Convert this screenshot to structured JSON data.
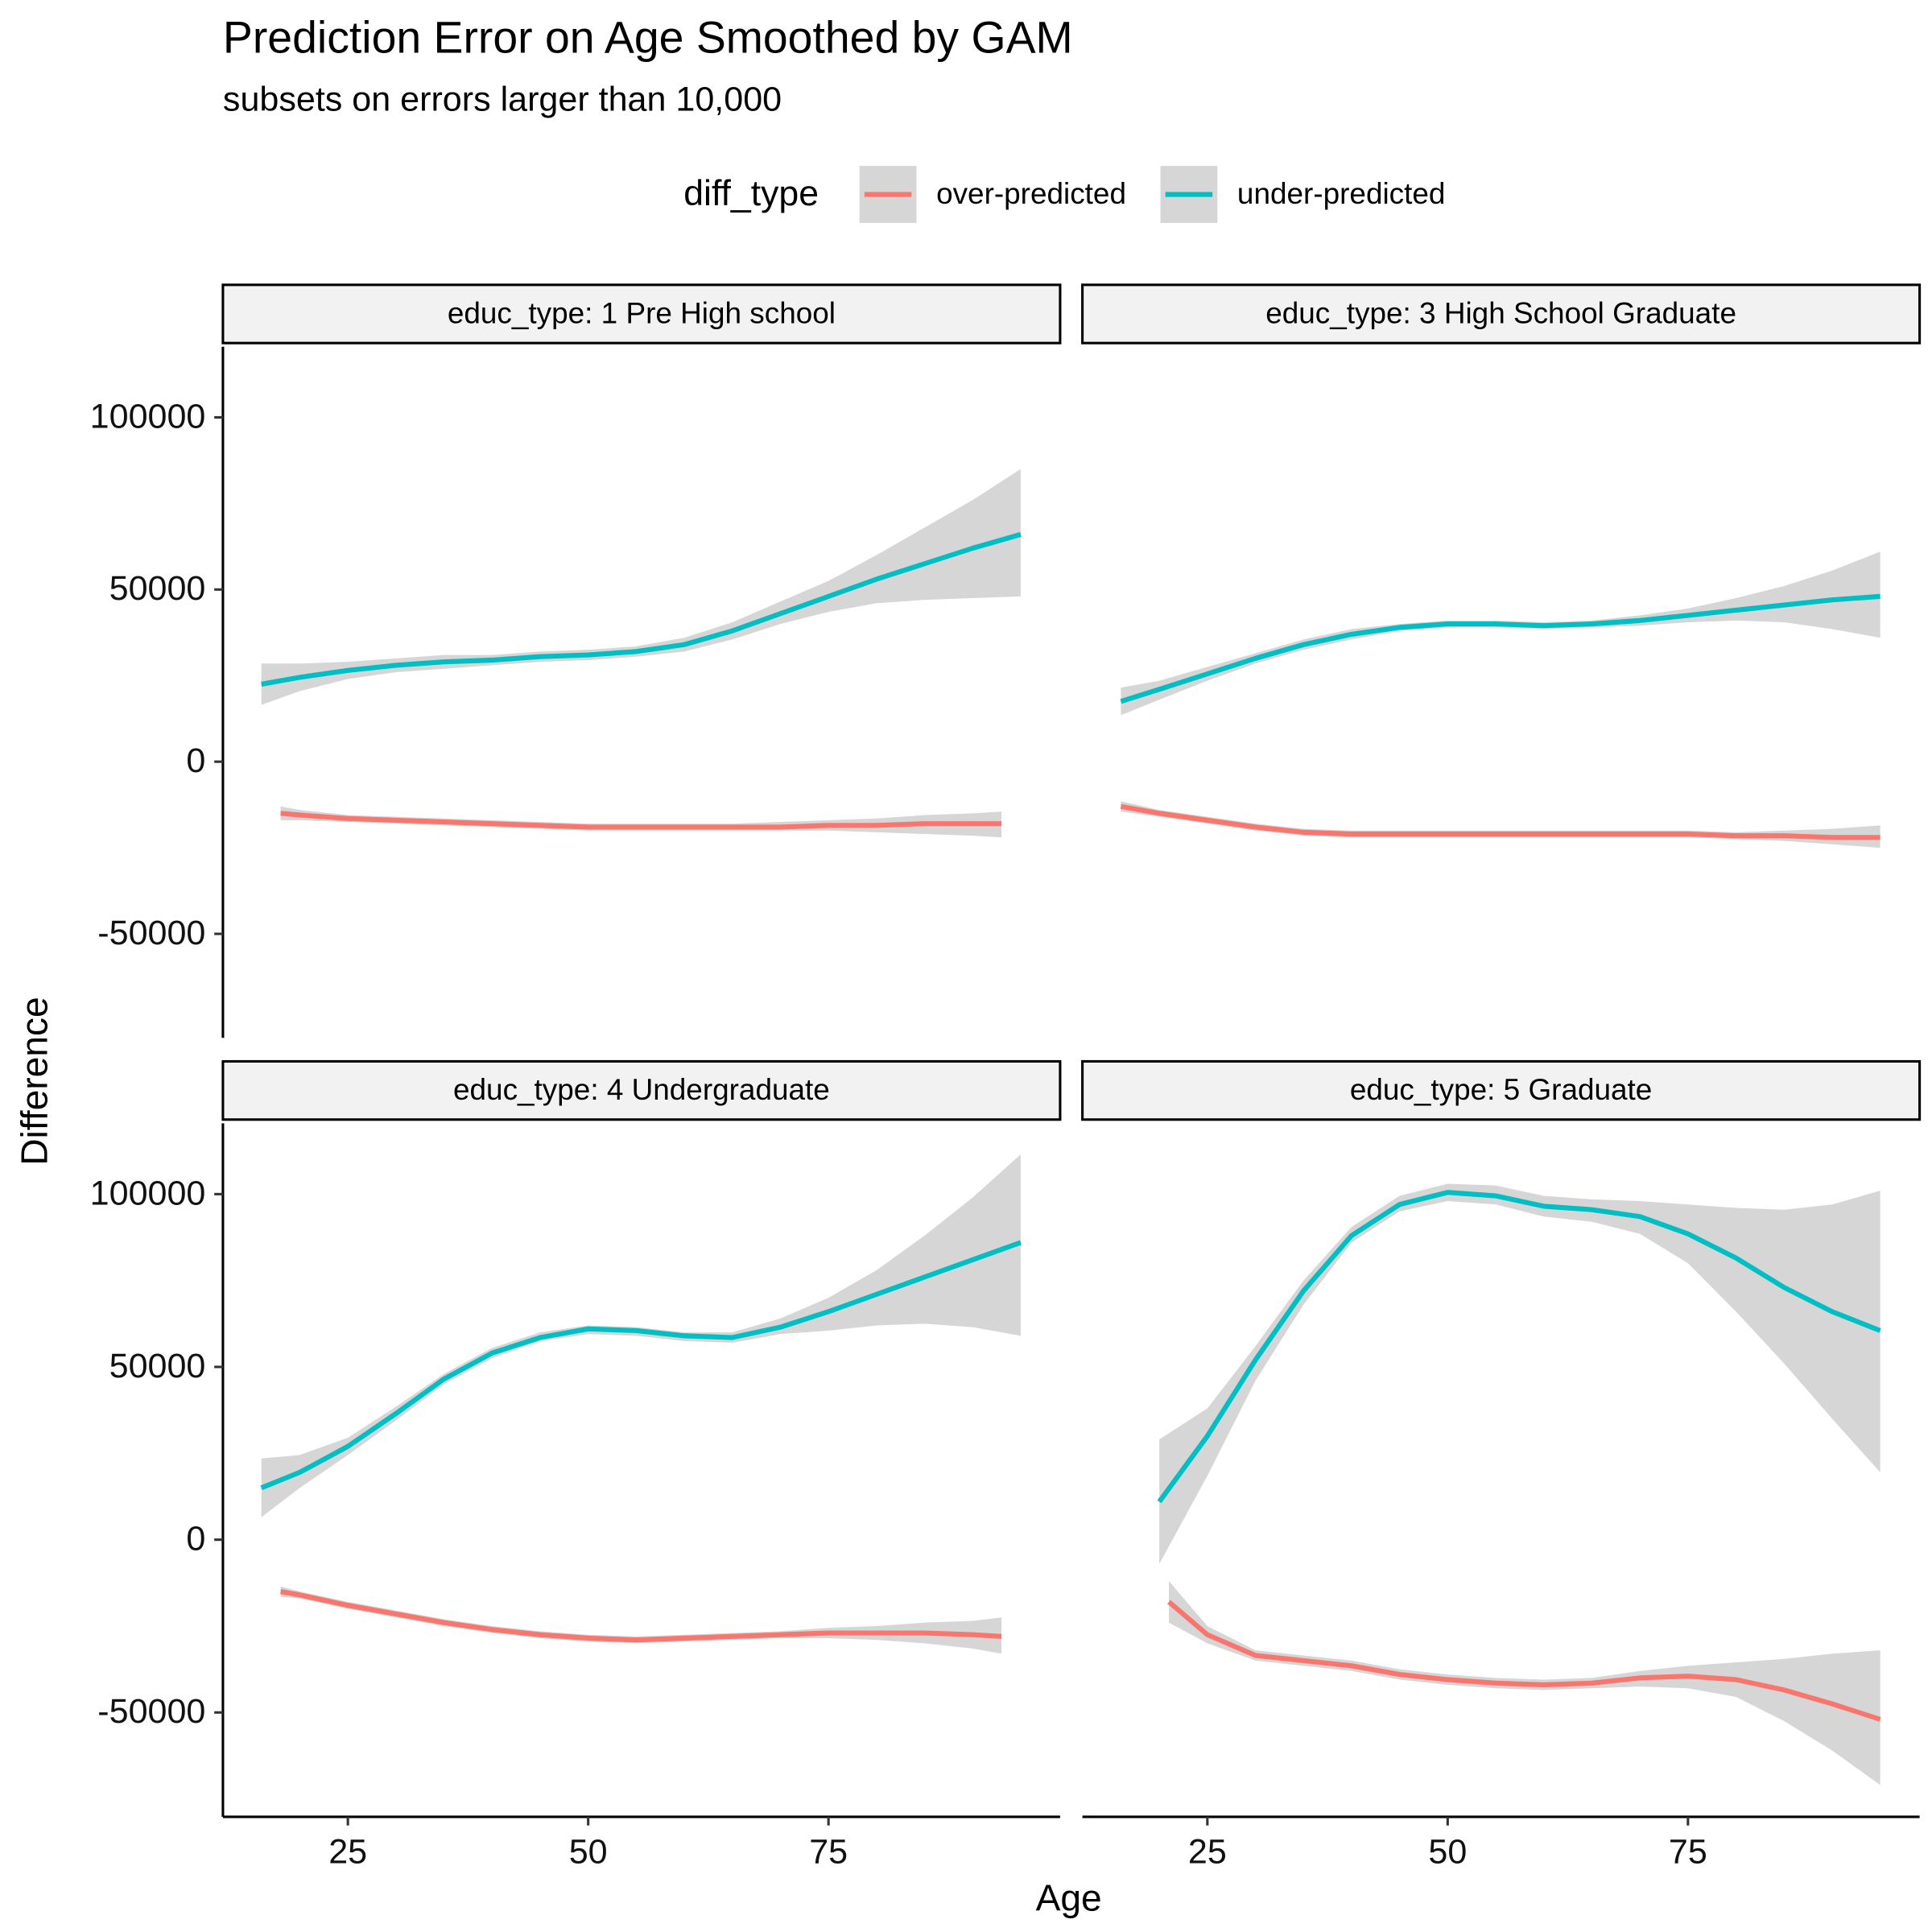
{
  "chart_data": {
    "type": "line",
    "title": "Prediction Error on Age Smoothed by GAM",
    "subtitle": "subsets on errors larger than 10,000",
    "x_label": "Age",
    "y_label": "Difference",
    "legend_title": "diff_type",
    "band_color": "#d6d6d6",
    "series": [
      {
        "name": "over-predicted",
        "color": "#F8766D"
      },
      {
        "name": "under-predicted",
        "color": "#00BFC4"
      }
    ],
    "xlim": [
      12,
      99.1
    ],
    "xticks": [
      25,
      50,
      75
    ],
    "ylim": [
      -80200,
      120500
    ],
    "yticks": [
      -50000,
      0,
      50000,
      100000
    ],
    "panels": [
      {
        "title": "educ_type: 1 Pre High school",
        "data": [
          {
            "x": [
              18,
              20,
              25,
              30,
              35,
              40,
              45,
              50,
              55,
              60,
              65,
              70,
              75,
              80,
              85,
              90,
              93
            ],
            "values": [
              -15000,
              -15500,
              -16500,
              -17000,
              -17500,
              -18000,
              -18500,
              -19000,
              -19000,
              -19000,
              -19000,
              -19000,
              -18500,
              -18500,
              -18000,
              -18000,
              -18000
            ],
            "lower": [
              -17000,
              -17000,
              -17500,
              -18000,
              -18500,
              -19000,
              -19500,
              -20000,
              -20000,
              -20000,
              -20000,
              -20000,
              -20000,
              -20500,
              -21000,
              -21500,
              -22000
            ],
            "upper": [
              -13000,
              -14000,
              -15500,
              -16000,
              -16500,
              -17000,
              -17500,
              -18000,
              -18000,
              -18000,
              -18000,
              -17500,
              -17000,
              -16500,
              -15500,
              -15000,
              -14500
            ]
          },
          {
            "x": [
              16,
              20,
              25,
              30,
              35,
              40,
              45,
              50,
              55,
              60,
              65,
              70,
              75,
              80,
              85,
              90,
              95
            ],
            "values": [
              22500,
              24500,
              26500,
              28000,
              29000,
              29500,
              30500,
              31000,
              32000,
              34000,
              38000,
              43000,
              48000,
              53000,
              57500,
              62000,
              66000
            ],
            "lower": [
              16500,
              20500,
              24000,
              26000,
              27000,
              28000,
              29000,
              29500,
              30500,
              32000,
              35500,
              40000,
              43500,
              46000,
              47000,
              47500,
              48000
            ],
            "upper": [
              28500,
              28500,
              29000,
              30000,
              31000,
              31000,
              32000,
              32500,
              33500,
              36000,
              40500,
              46500,
              52500,
              60000,
              68000,
              76000,
              85000
            ]
          }
        ]
      },
      {
        "title": "educ_type: 3 High School Graduate",
        "data": [
          {
            "x": [
              16,
              20,
              25,
              30,
              35,
              40,
              45,
              50,
              55,
              60,
              65,
              70,
              75,
              80,
              85,
              90,
              95
            ],
            "values": [
              -13000,
              -15000,
              -17000,
              -19000,
              -20500,
              -21000,
              -21000,
              -21000,
              -21000,
              -21000,
              -21000,
              -21000,
              -21000,
              -21500,
              -21500,
              -22000,
              -22000
            ],
            "lower": [
              -14500,
              -16000,
              -18000,
              -20000,
              -21500,
              -22000,
              -22000,
              -22000,
              -22000,
              -22000,
              -22000,
              -22000,
              -22000,
              -22500,
              -23000,
              -24000,
              -25000
            ],
            "upper": [
              -11500,
              -14000,
              -16000,
              -18000,
              -19500,
              -20000,
              -20000,
              -20000,
              -20000,
              -20000,
              -20000,
              -20000,
              -20000,
              -20500,
              -20000,
              -19500,
              -18500
            ]
          },
          {
            "x": [
              16,
              20,
              25,
              30,
              35,
              40,
              45,
              50,
              55,
              60,
              65,
              70,
              75,
              80,
              85,
              90,
              95
            ],
            "values": [
              17500,
              21000,
              25500,
              30000,
              34000,
              37000,
              39000,
              40000,
              40000,
              39500,
              40000,
              41000,
              42500,
              44000,
              45500,
              47000,
              48000
            ],
            "lower": [
              13500,
              18000,
              23500,
              28500,
              32500,
              35500,
              38000,
              39000,
              39000,
              38500,
              39000,
              39500,
              40500,
              41000,
              40500,
              38500,
              36000
            ],
            "upper": [
              21500,
              23500,
              27500,
              31500,
              35500,
              38500,
              40000,
              41000,
              41000,
              40500,
              41000,
              42500,
              44500,
              47500,
              51000,
              55500,
              61000
            ]
          }
        ]
      },
      {
        "title": "educ_type: 4 Undergraduate",
        "data": [
          {
            "x": [
              18,
              20,
              25,
              30,
              35,
              40,
              45,
              50,
              55,
              60,
              65,
              70,
              75,
              80,
              85,
              90,
              93
            ],
            "values": [
              -15000,
              -16000,
              -19000,
              -21500,
              -24000,
              -26000,
              -27500,
              -28500,
              -29000,
              -28500,
              -28000,
              -27500,
              -27000,
              -27000,
              -27000,
              -27500,
              -28000
            ],
            "lower": [
              -16500,
              -17000,
              -20000,
              -22500,
              -25000,
              -27000,
              -28500,
              -29500,
              -30000,
              -29500,
              -29000,
              -28500,
              -28500,
              -29000,
              -30000,
              -31500,
              -33000
            ],
            "upper": [
              -13500,
              -15000,
              -18000,
              -20500,
              -23000,
              -25000,
              -26500,
              -27500,
              -28000,
              -27500,
              -27000,
              -26500,
              -25500,
              -25000,
              -24000,
              -23500,
              -22500
            ]
          },
          {
            "x": [
              16,
              20,
              25,
              30,
              35,
              40,
              45,
              50,
              55,
              60,
              65,
              70,
              75,
              80,
              85,
              90,
              95
            ],
            "values": [
              15000,
              19500,
              27000,
              36500,
              46500,
              54000,
              58500,
              61000,
              60500,
              59000,
              58500,
              61500,
              66000,
              71000,
              76000,
              81000,
              86000
            ],
            "lower": [
              6500,
              15000,
              24500,
              34500,
              45000,
              52500,
              57500,
              59500,
              59000,
              57500,
              57000,
              59500,
              60500,
              62000,
              62500,
              61500,
              59000
            ],
            "upper": [
              23500,
              24500,
              29500,
              38500,
              48000,
              55500,
              60000,
              62000,
              61500,
              60000,
              60000,
              64000,
              70000,
              78000,
              88000,
              99000,
              111500
            ]
          }
        ]
      },
      {
        "title": "educ_type: 5 Graduate",
        "data": [
          {
            "x": [
              21,
              25,
              30,
              35,
              40,
              45,
              50,
              55,
              60,
              65,
              70,
              75,
              80,
              85,
              90,
              95
            ],
            "values": [
              -18000,
              -27500,
              -33500,
              -35000,
              -36500,
              -39000,
              -40500,
              -41500,
              -42000,
              -41500,
              -40000,
              -39500,
              -40500,
              -43500,
              -47500,
              -52000
            ],
            "lower": [
              -24000,
              -30000,
              -35000,
              -36500,
              -38000,
              -40500,
              -42000,
              -43000,
              -43500,
              -43000,
              -42500,
              -43000,
              -45500,
              -52500,
              -61000,
              -71000
            ],
            "upper": [
              -12000,
              -25000,
              -32000,
              -33500,
              -35000,
              -37500,
              -39000,
              -40000,
              -40500,
              -40000,
              -38000,
              -36500,
              -35500,
              -34500,
              -33000,
              -32000
            ]
          },
          {
            "x": [
              20,
              25,
              30,
              35,
              40,
              45,
              50,
              55,
              60,
              65,
              70,
              75,
              80,
              85,
              90,
              95
            ],
            "values": [
              11000,
              30000,
              52000,
              72000,
              88000,
              97000,
              100500,
              99500,
              96500,
              95500,
              93500,
              88500,
              81500,
              73000,
              66000,
              60500
            ],
            "lower": [
              -7000,
              18500,
              46000,
              68000,
              86000,
              95000,
              98000,
              97000,
              93500,
              92000,
              88500,
              80000,
              66000,
              51000,
              35000,
              19500
            ],
            "upper": [
              29000,
              38000,
              56000,
              75000,
              90500,
              99500,
              103000,
              102500,
              99500,
              98500,
              98000,
              97000,
              96000,
              95500,
              97000,
              101000
            ]
          }
        ]
      }
    ]
  }
}
